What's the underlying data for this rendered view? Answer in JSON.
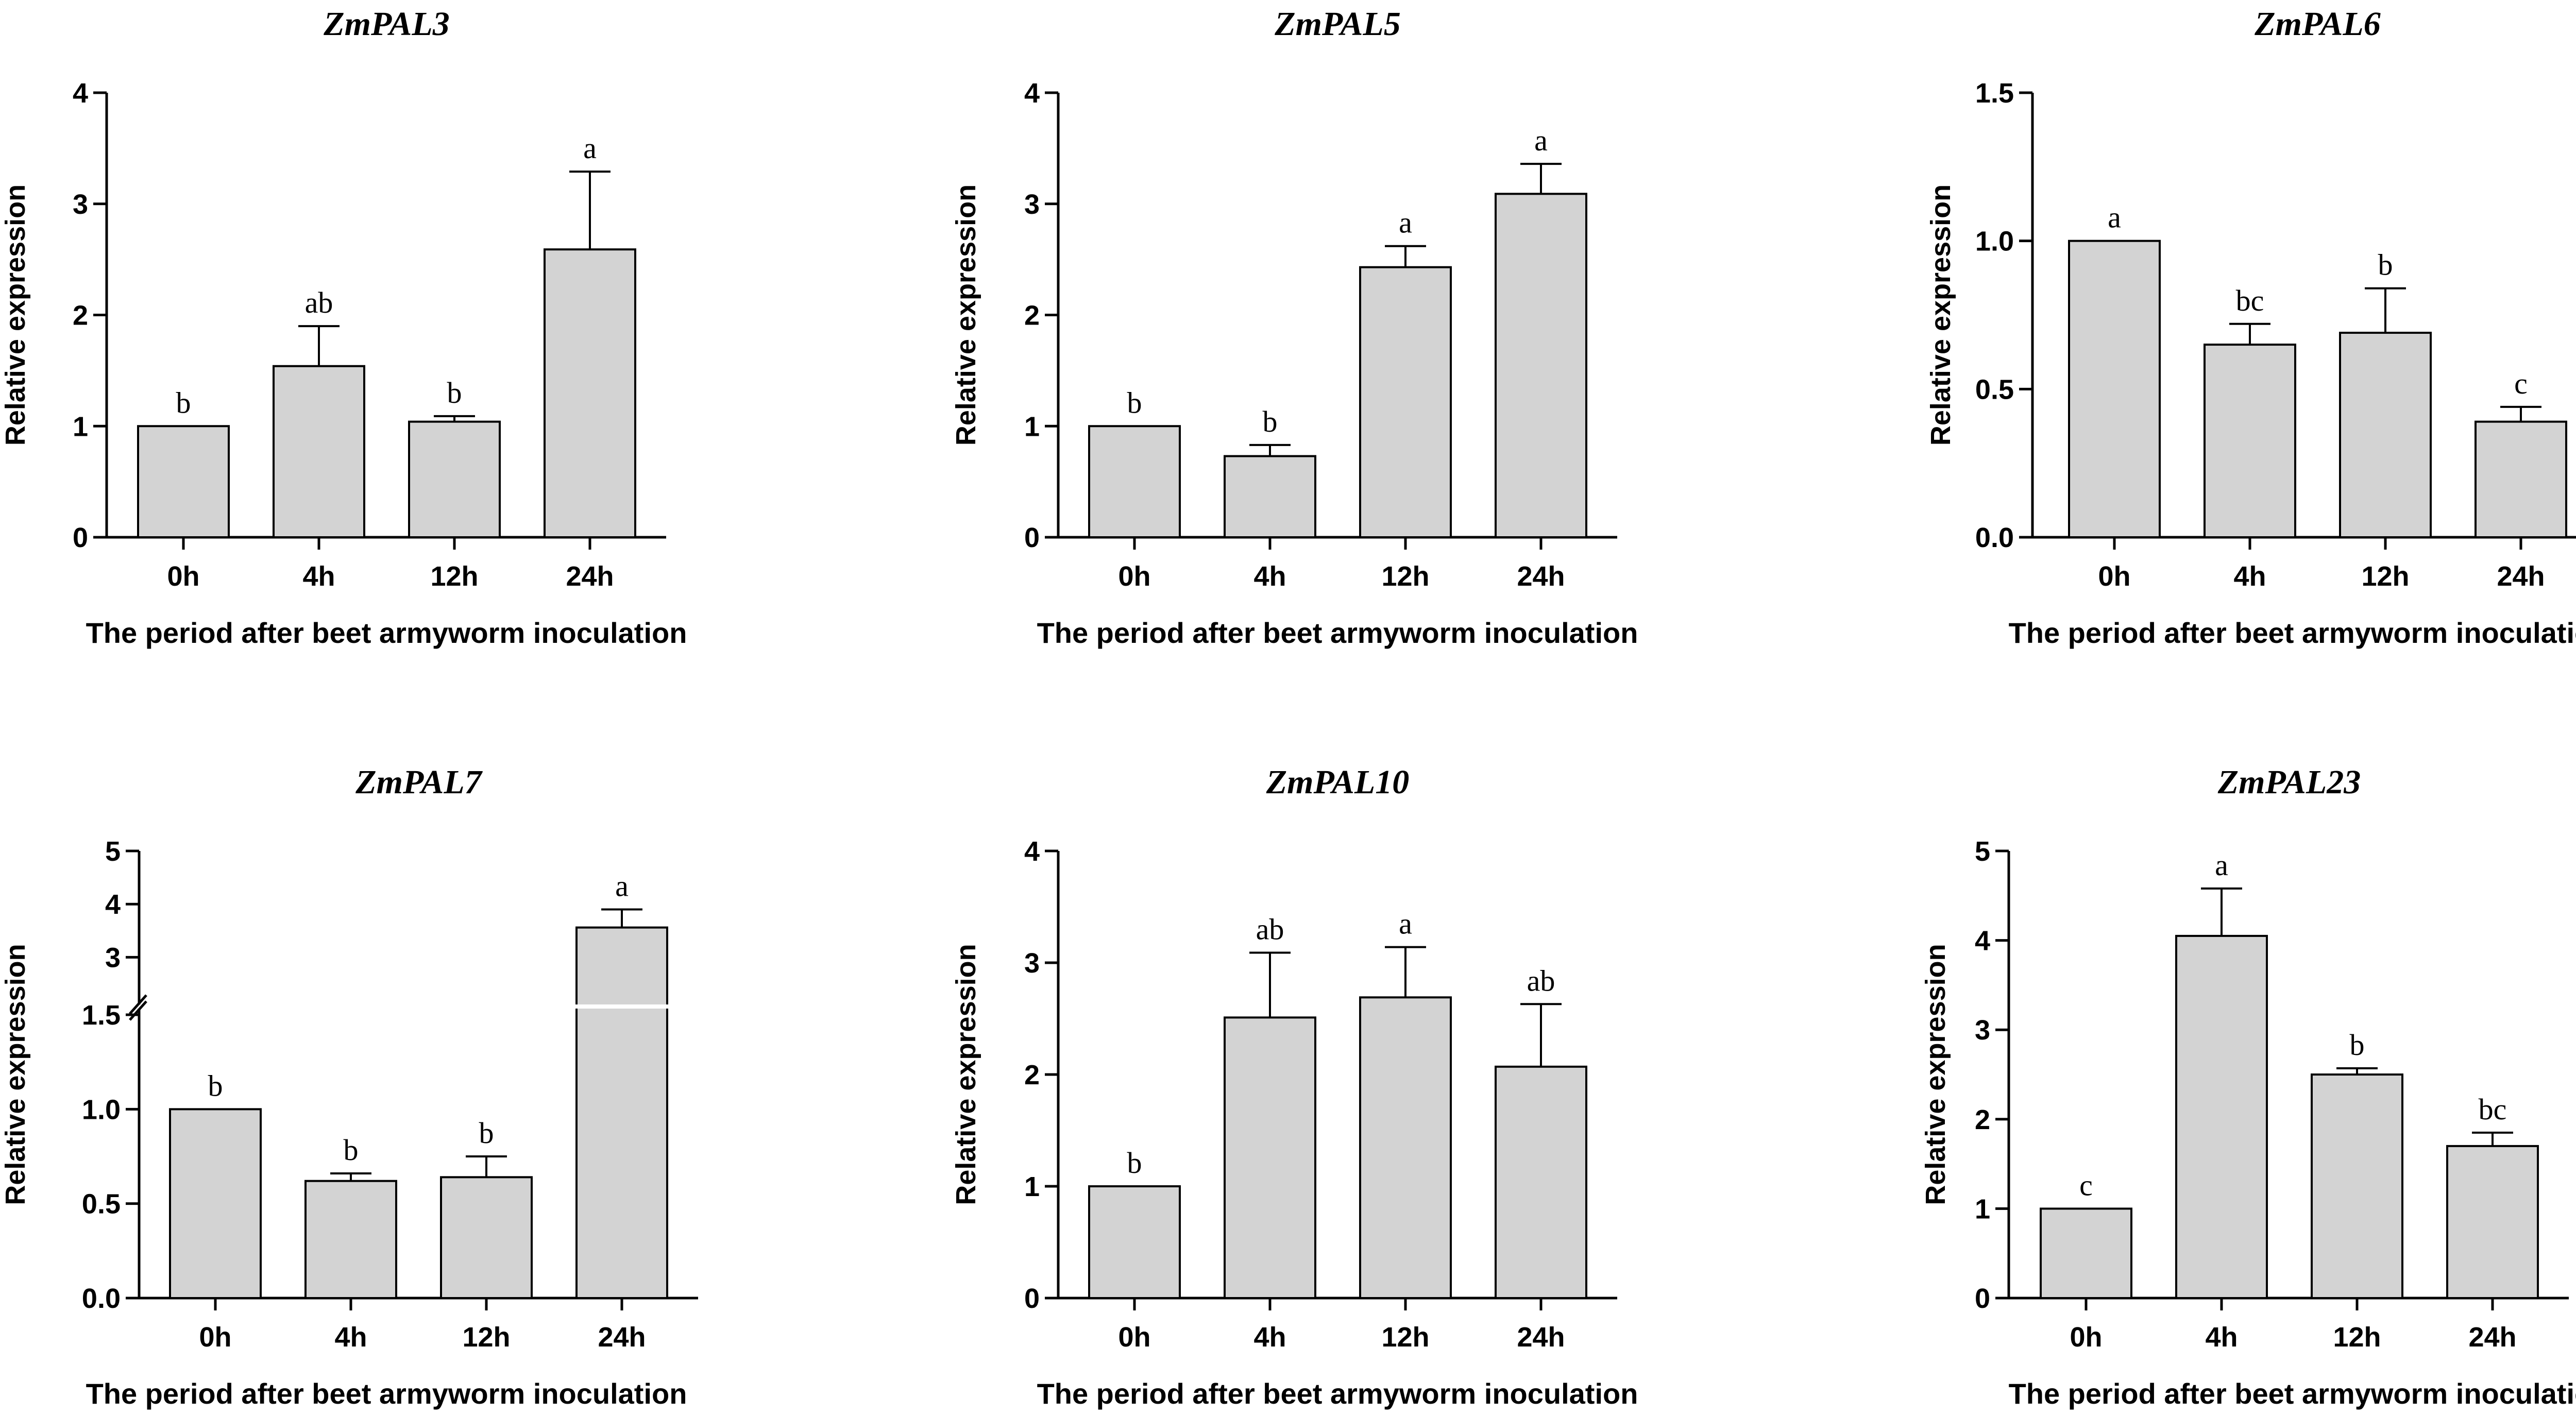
{
  "chart_data": [
    {
      "type": "bar",
      "title": "ZmPAL3",
      "categories": [
        "0h",
        "4h",
        "12h",
        "24h"
      ],
      "values": [
        1.0,
        1.54,
        1.04,
        2.59
      ],
      "errors": [
        0,
        0.36,
        0.05,
        0.7
      ],
      "significance": [
        "b",
        "ab",
        "b",
        "a"
      ],
      "ylabel": "Relative expression",
      "xlabel": "The period after beet armyworm inoculation",
      "ylim": [
        0,
        4
      ],
      "yticks": [
        "0",
        "1",
        "2",
        "3",
        "4"
      ],
      "bar_color": "#d3d3d3"
    },
    {
      "type": "bar",
      "title": "ZmPAL5",
      "categories": [
        "0h",
        "4h",
        "12h",
        "24h"
      ],
      "values": [
        1.0,
        0.73,
        2.43,
        3.09
      ],
      "errors": [
        0,
        0.1,
        0.19,
        0.27
      ],
      "significance": [
        "b",
        "b",
        "a",
        "a"
      ],
      "ylabel": "Relative expression",
      "xlabel": "The period after beet armyworm inoculation",
      "ylim": [
        0,
        4
      ],
      "yticks": [
        "0",
        "1",
        "2",
        "3",
        "4"
      ],
      "bar_color": "#d3d3d3"
    },
    {
      "type": "bar",
      "title": "ZmPAL6",
      "categories": [
        "0h",
        "4h",
        "12h",
        "24h"
      ],
      "values": [
        1.0,
        0.65,
        0.69,
        0.39
      ],
      "errors": [
        0,
        0.07,
        0.15,
        0.05
      ],
      "significance": [
        "a",
        "bc",
        "b",
        "c"
      ],
      "ylabel": "Relative expression",
      "xlabel": "The period after beet armyworm inoculation",
      "ylim": [
        0,
        1.5
      ],
      "yticks": [
        "0.0",
        "0.5",
        "1.0",
        "1.5"
      ],
      "bar_color": "#d3d3d3"
    },
    {
      "type": "bar",
      "title": "ZmPAL7",
      "categories": [
        "0h",
        "4h",
        "12h",
        "24h"
      ],
      "values": [
        1.0,
        0.62,
        0.64,
        3.56
      ],
      "errors": [
        0,
        0.04,
        0.11,
        0.34
      ],
      "significance": [
        "b",
        "b",
        "b",
        "a"
      ],
      "ylabel": "Relative expression",
      "xlabel": "The period after beet armyworm inoculation",
      "ylim": [
        0,
        5
      ],
      "axis_break": [
        1.5,
        2.5
      ],
      "yticks": [
        "0.0",
        "0.5",
        "1.0",
        "1.5",
        "3",
        "4",
        "5"
      ],
      "bar_color": "#d3d3d3"
    },
    {
      "type": "bar",
      "title": "ZmPAL10",
      "categories": [
        "0h",
        "4h",
        "12h",
        "24h"
      ],
      "values": [
        1.0,
        2.51,
        2.69,
        2.07
      ],
      "errors": [
        0,
        0.58,
        0.45,
        0.56
      ],
      "significance": [
        "b",
        "ab",
        "a",
        "ab"
      ],
      "ylabel": "Relative expression",
      "xlabel": "The period after beet armyworm inoculation",
      "ylim": [
        0,
        4
      ],
      "yticks": [
        "0",
        "1",
        "2",
        "3",
        "4"
      ],
      "bar_color": "#d3d3d3"
    },
    {
      "type": "bar",
      "title": "ZmPAL23",
      "categories": [
        "0h",
        "4h",
        "12h",
        "24h"
      ],
      "values": [
        1.0,
        4.05,
        2.5,
        1.7
      ],
      "errors": [
        0,
        0.53,
        0.07,
        0.15
      ],
      "significance": [
        "c",
        "a",
        "b",
        "bc"
      ],
      "ylabel": "Relative expression",
      "xlabel": "The period after beet armyworm inoculation",
      "ylim": [
        0,
        5
      ],
      "yticks": [
        "0",
        "1",
        "2",
        "3",
        "4",
        "5"
      ],
      "bar_color": "#d3d3d3"
    }
  ]
}
